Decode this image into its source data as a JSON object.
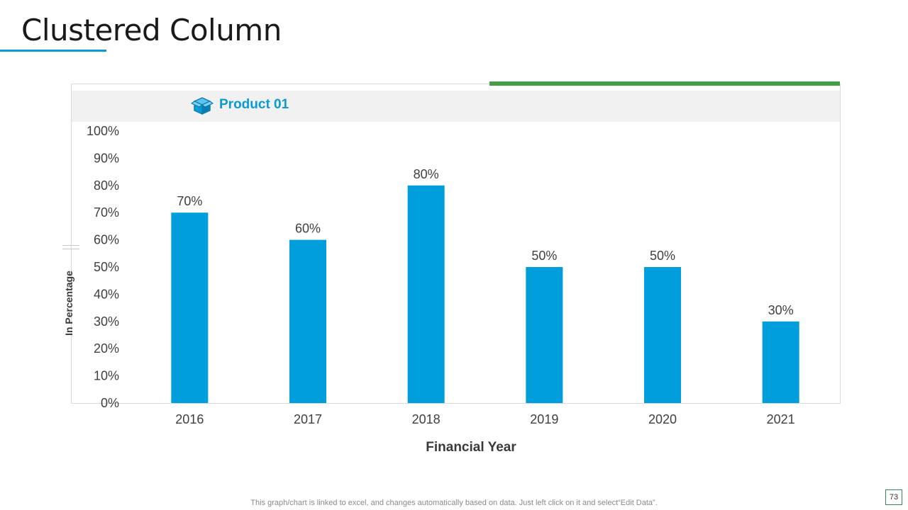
{
  "title": "Clustered Column",
  "footer_note": "This graph/chart is linked to excel,  and changes automatically based on data. Just left click on it and select“Edit Data”.",
  "page_number": "73",
  "legend": {
    "icon": "box-icon",
    "label": "Product 01"
  },
  "colors": {
    "bar": "#009fdb",
    "accent_blue": "#0a9bd6",
    "accent_green": "#43a047"
  },
  "chart_data": {
    "type": "bar",
    "title": "",
    "xlabel": "Financial Year",
    "ylabel": "In Percentage",
    "categories": [
      "2016",
      "2017",
      "2018",
      "2019",
      "2020",
      "2021"
    ],
    "series": [
      {
        "name": "Product 01",
        "values": [
          70,
          60,
          80,
          50,
          50,
          30
        ],
        "labels": [
          "70%",
          "60%",
          "80%",
          "50%",
          "50%",
          "30%"
        ]
      }
    ],
    "ylim": [
      0,
      100
    ],
    "yticks": [
      0,
      10,
      20,
      30,
      40,
      50,
      60,
      70,
      80,
      90,
      100
    ],
    "ytick_labels": [
      "0%",
      "10%",
      "20%",
      "30%",
      "40%",
      "50%",
      "60%",
      "70%",
      "80%",
      "90%",
      "100%"
    ],
    "grid": false,
    "legend_position": "top-left"
  }
}
